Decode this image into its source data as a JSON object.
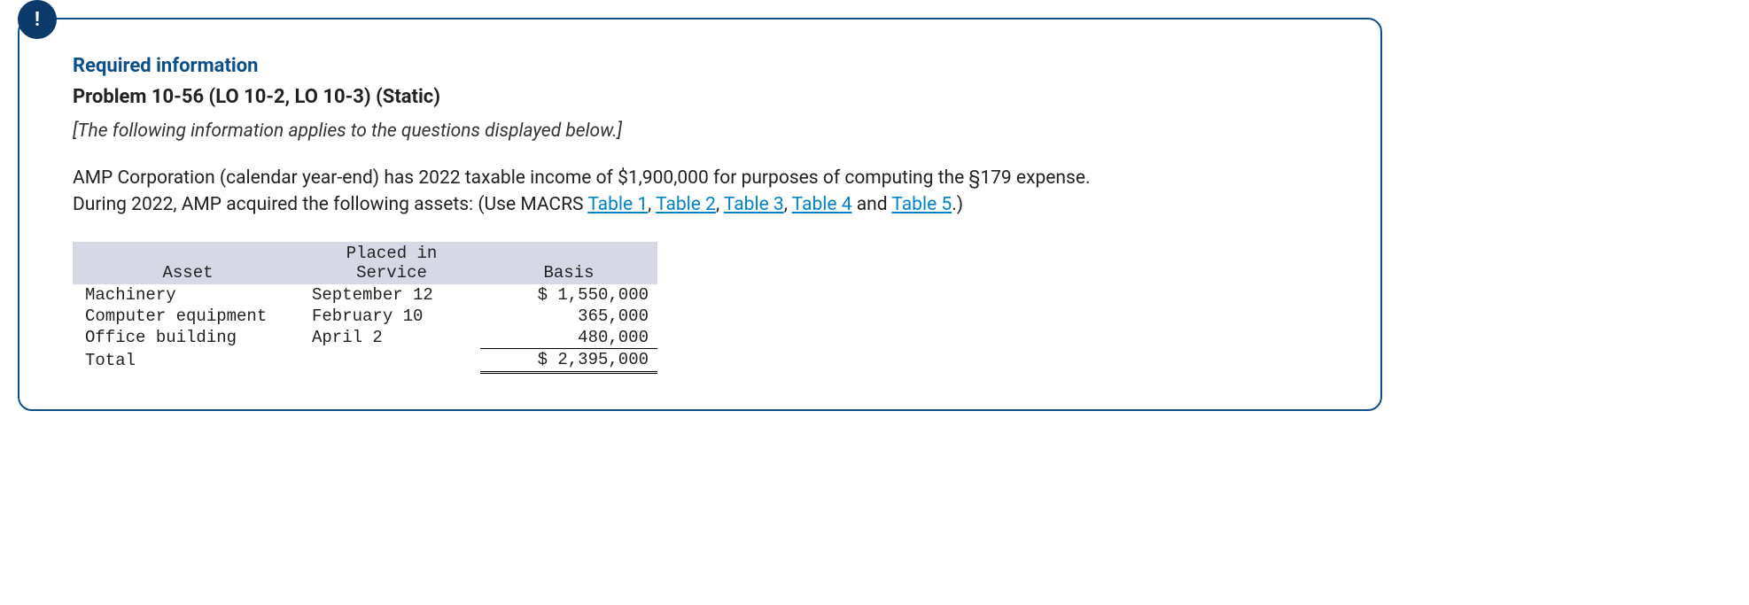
{
  "badge": "!",
  "required_title": "Required information",
  "problem_title": "Problem 10-56 (LO 10-2, LO 10-3) (Static)",
  "note": "[The following information applies to the questions displayed below.]",
  "body": {
    "pre": "AMP Corporation (calendar year-end) has 2022 taxable income of $1,900,000 for purposes of computing the §179 expense. During 2022, AMP acquired the following assets: (Use MACRS ",
    "links": {
      "t1": "Table 1",
      "t2": "Table 2",
      "t3": "Table 3",
      "t4": "Table 4",
      "t5": "Table 5"
    },
    "sep": ", ",
    "and": " and ",
    "post": ".)"
  },
  "table": {
    "headers": {
      "asset": "Asset",
      "service_l1": "Placed in",
      "service_l2": "Service",
      "basis": "Basis"
    },
    "rows": [
      {
        "asset": "Machinery",
        "service": "September 12",
        "basis": "$ 1,550,000"
      },
      {
        "asset": "Computer equipment",
        "service": "February 10",
        "basis": "365,000"
      },
      {
        "asset": "Office building",
        "service": "April 2",
        "basis": "480,000"
      }
    ],
    "total": {
      "label": "Total",
      "basis": "$ 2,395,000"
    }
  },
  "colors": {
    "border": "#0b4f8a",
    "badge_bg": "#0b3a6b",
    "link": "#0082c8",
    "th_bg": "#d6d9e5"
  }
}
